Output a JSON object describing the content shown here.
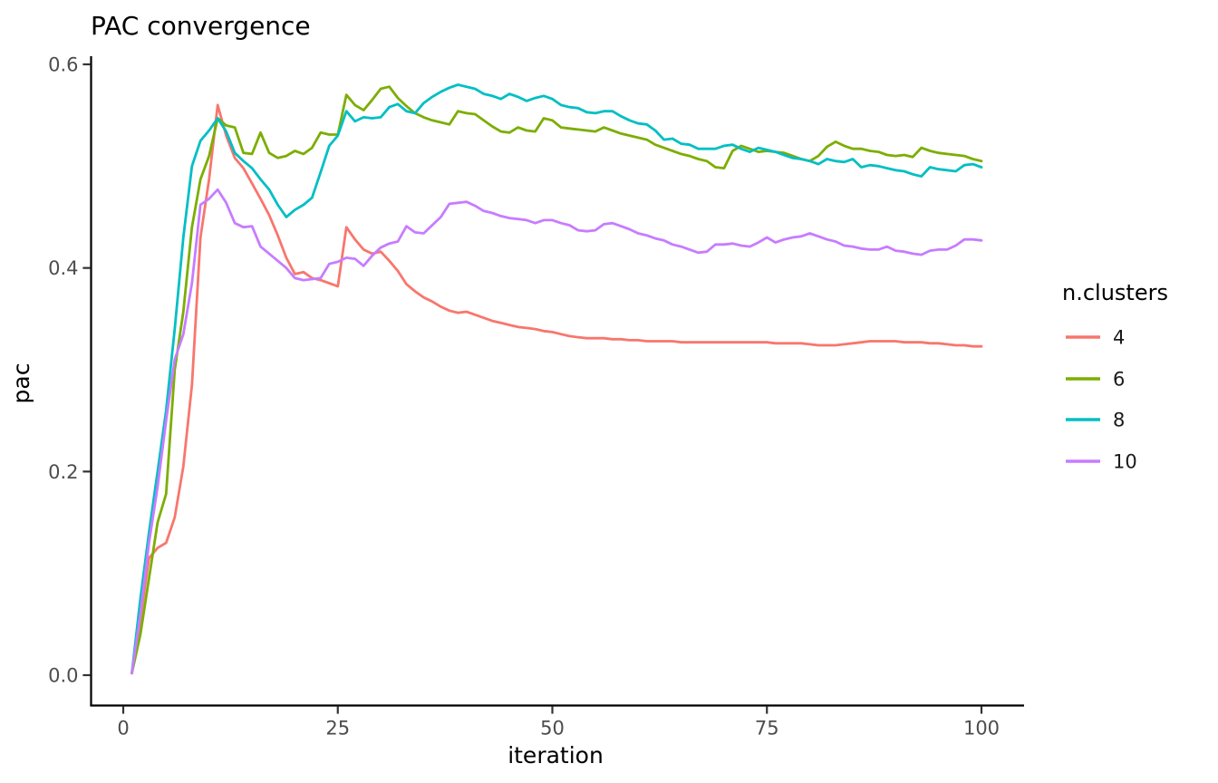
{
  "chart_data": {
    "type": "line",
    "title": "PAC convergence",
    "xlabel": "iteration",
    "ylabel": "pac",
    "legend_title": "n.clusters",
    "legend_position": "right",
    "grid": false,
    "background": "#ffffff",
    "axis_color": "#000000",
    "tick_label_color": "#4d4d4d",
    "xlim": [
      0,
      100
    ],
    "ylim": [
      0.0,
      0.6
    ],
    "x_ticks": [
      {
        "v": 0,
        "label": "0"
      },
      {
        "v": 25,
        "label": "25"
      },
      {
        "v": 50,
        "label": "50"
      },
      {
        "v": 75,
        "label": "75"
      },
      {
        "v": 100,
        "label": "100"
      }
    ],
    "y_ticks": [
      {
        "v": 0.0,
        "label": "0.0"
      },
      {
        "v": 0.2,
        "label": "0.2"
      },
      {
        "v": 0.4,
        "label": "0.4"
      },
      {
        "v": 0.6,
        "label": "0.6"
      }
    ],
    "x_start": 1,
    "series": [
      {
        "name": "4",
        "color": "#F8766D",
        "values": [
          0.002,
          0.055,
          0.115,
          0.125,
          0.13,
          0.155,
          0.205,
          0.285,
          0.43,
          0.487,
          0.56,
          0.53,
          0.508,
          0.498,
          0.483,
          0.468,
          0.452,
          0.432,
          0.41,
          0.394,
          0.396,
          0.39,
          0.388,
          0.385,
          0.382,
          0.44,
          0.428,
          0.418,
          0.414,
          0.416,
          0.407,
          0.397,
          0.384,
          0.377,
          0.371,
          0.367,
          0.362,
          0.358,
          0.356,
          0.357,
          0.354,
          0.351,
          0.348,
          0.346,
          0.344,
          0.342,
          0.341,
          0.34,
          0.338,
          0.337,
          0.335,
          0.333,
          0.332,
          0.331,
          0.331,
          0.331,
          0.33,
          0.33,
          0.329,
          0.329,
          0.328,
          0.328,
          0.328,
          0.328,
          0.327,
          0.327,
          0.327,
          0.327,
          0.327,
          0.327,
          0.327,
          0.327,
          0.327,
          0.327,
          0.327,
          0.326,
          0.326,
          0.326,
          0.326,
          0.325,
          0.324,
          0.324,
          0.324,
          0.325,
          0.326,
          0.327,
          0.328,
          0.328,
          0.328,
          0.328,
          0.327,
          0.327,
          0.327,
          0.326,
          0.326,
          0.325,
          0.324,
          0.324,
          0.323,
          0.323
        ]
      },
      {
        "name": "6",
        "color": "#7CAE00",
        "values": [
          0.002,
          0.04,
          0.095,
          0.15,
          0.178,
          0.3,
          0.357,
          0.44,
          0.487,
          0.51,
          0.547,
          0.54,
          0.538,
          0.513,
          0.512,
          0.533,
          0.513,
          0.508,
          0.51,
          0.515,
          0.512,
          0.518,
          0.533,
          0.531,
          0.531,
          0.57,
          0.56,
          0.555,
          0.565,
          0.576,
          0.578,
          0.567,
          0.559,
          0.552,
          0.548,
          0.545,
          0.543,
          0.541,
          0.554,
          0.552,
          0.551,
          0.545,
          0.539,
          0.534,
          0.533,
          0.538,
          0.535,
          0.534,
          0.547,
          0.545,
          0.538,
          0.537,
          0.536,
          0.535,
          0.534,
          0.538,
          0.535,
          0.532,
          0.53,
          0.528,
          0.526,
          0.521,
          0.518,
          0.515,
          0.512,
          0.51,
          0.507,
          0.505,
          0.499,
          0.498,
          0.515,
          0.52,
          0.517,
          0.514,
          0.515,
          0.514,
          0.513,
          0.51,
          0.507,
          0.505,
          0.51,
          0.519,
          0.524,
          0.52,
          0.517,
          0.517,
          0.515,
          0.514,
          0.511,
          0.51,
          0.511,
          0.509,
          0.518,
          0.515,
          0.513,
          0.512,
          0.511,
          0.51,
          0.507,
          0.505
        ]
      },
      {
        "name": "8",
        "color": "#00BFC4",
        "values": [
          0.002,
          0.075,
          0.14,
          0.2,
          0.26,
          0.34,
          0.43,
          0.5,
          0.525,
          0.535,
          0.547,
          0.534,
          0.513,
          0.505,
          0.498,
          0.487,
          0.477,
          0.462,
          0.45,
          0.457,
          0.462,
          0.469,
          0.494,
          0.52,
          0.53,
          0.554,
          0.544,
          0.548,
          0.547,
          0.548,
          0.558,
          0.561,
          0.554,
          0.552,
          0.562,
          0.568,
          0.573,
          0.577,
          0.58,
          0.578,
          0.576,
          0.571,
          0.569,
          0.566,
          0.571,
          0.568,
          0.564,
          0.567,
          0.569,
          0.566,
          0.56,
          0.558,
          0.557,
          0.553,
          0.552,
          0.554,
          0.554,
          0.549,
          0.545,
          0.542,
          0.541,
          0.535,
          0.526,
          0.527,
          0.522,
          0.521,
          0.517,
          0.517,
          0.517,
          0.52,
          0.521,
          0.517,
          0.514,
          0.518,
          0.516,
          0.514,
          0.511,
          0.508,
          0.507,
          0.505,
          0.502,
          0.507,
          0.505,
          0.504,
          0.507,
          0.499,
          0.501,
          0.5,
          0.498,
          0.496,
          0.495,
          0.492,
          0.49,
          0.499,
          0.497,
          0.496,
          0.495,
          0.501,
          0.502,
          0.499
        ]
      },
      {
        "name": "10",
        "color": "#C77CFF",
        "values": [
          0.002,
          0.06,
          0.13,
          0.185,
          0.25,
          0.31,
          0.335,
          0.385,
          0.462,
          0.468,
          0.477,
          0.464,
          0.444,
          0.44,
          0.441,
          0.421,
          0.414,
          0.407,
          0.4,
          0.39,
          0.388,
          0.389,
          0.39,
          0.404,
          0.406,
          0.41,
          0.409,
          0.402,
          0.412,
          0.42,
          0.424,
          0.426,
          0.441,
          0.435,
          0.434,
          0.442,
          0.45,
          0.463,
          0.464,
          0.465,
          0.461,
          0.456,
          0.454,
          0.451,
          0.449,
          0.448,
          0.447,
          0.444,
          0.447,
          0.447,
          0.444,
          0.442,
          0.437,
          0.436,
          0.437,
          0.443,
          0.444,
          0.441,
          0.438,
          0.434,
          0.432,
          0.429,
          0.427,
          0.423,
          0.421,
          0.418,
          0.415,
          0.416,
          0.423,
          0.423,
          0.424,
          0.422,
          0.421,
          0.425,
          0.43,
          0.425,
          0.428,
          0.43,
          0.431,
          0.434,
          0.431,
          0.428,
          0.426,
          0.422,
          0.421,
          0.419,
          0.418,
          0.418,
          0.421,
          0.417,
          0.416,
          0.414,
          0.413,
          0.417,
          0.418,
          0.418,
          0.422,
          0.428,
          0.428,
          0.427
        ]
      }
    ]
  }
}
